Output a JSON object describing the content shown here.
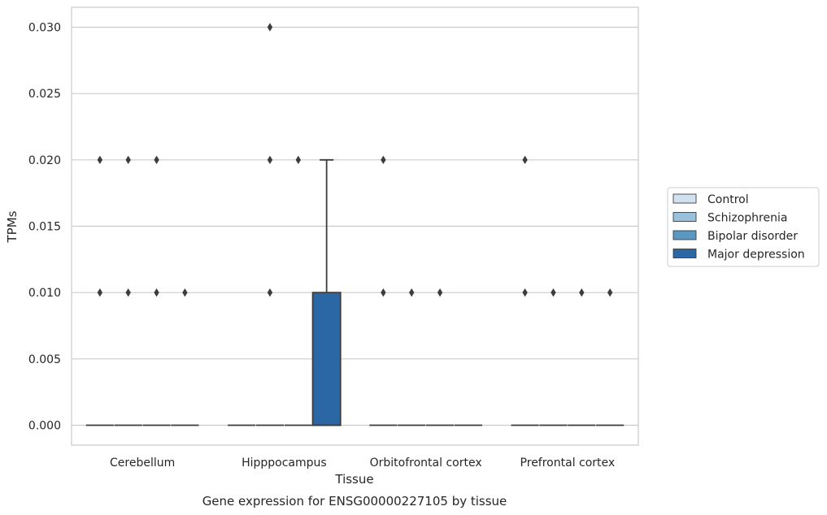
{
  "chart_data": {
    "type": "box",
    "title": "Gene expression for ENSG00000227105 by tissue",
    "xlabel": "Tissue",
    "ylabel": "TPMs",
    "categories": [
      "Cerebellum",
      "Hipppocampus",
      "Orbitofrontal cortex",
      "Prefrontal cortex"
    ],
    "ylim": [
      -0.0015,
      0.0315
    ],
    "yticks": [
      "0.000",
      "0.005",
      "0.010",
      "0.015",
      "0.020",
      "0.025",
      "0.030"
    ],
    "grid": "horizontal",
    "legend_position": "right",
    "colors": {
      "Control": "#d2e1f0",
      "Schizophrenia": "#9ac1db",
      "Bipolar disorder": "#5a98c4",
      "Major depression": "#2b67a5"
    },
    "series": [
      {
        "name": "Control",
        "boxes": [
          {
            "q1": 0,
            "median": 0,
            "q3": 0,
            "whisker_low": 0,
            "whisker_high": 0,
            "outliers": [
              0.01,
              0.02
            ]
          },
          {
            "q1": 0,
            "median": 0,
            "q3": 0,
            "whisker_low": 0,
            "whisker_high": 0,
            "outliers": []
          },
          {
            "q1": 0,
            "median": 0,
            "q3": 0,
            "whisker_low": 0,
            "whisker_high": 0,
            "outliers": [
              0.01,
              0.02
            ]
          },
          {
            "q1": 0,
            "median": 0,
            "q3": 0,
            "whisker_low": 0,
            "whisker_high": 0,
            "outliers": [
              0.01,
              0.02
            ]
          }
        ]
      },
      {
        "name": "Schizophrenia",
        "boxes": [
          {
            "q1": 0,
            "median": 0,
            "q3": 0,
            "whisker_low": 0,
            "whisker_high": 0,
            "outliers": [
              0.01,
              0.02
            ]
          },
          {
            "q1": 0,
            "median": 0,
            "q3": 0,
            "whisker_low": 0,
            "whisker_high": 0,
            "outliers": [
              0.01,
              0.02,
              0.03
            ]
          },
          {
            "q1": 0,
            "median": 0,
            "q3": 0,
            "whisker_low": 0,
            "whisker_high": 0,
            "outliers": [
              0.01
            ]
          },
          {
            "q1": 0,
            "median": 0,
            "q3": 0,
            "whisker_low": 0,
            "whisker_high": 0,
            "outliers": [
              0.01
            ]
          }
        ]
      },
      {
        "name": "Bipolar disorder",
        "boxes": [
          {
            "q1": 0,
            "median": 0,
            "q3": 0,
            "whisker_low": 0,
            "whisker_high": 0,
            "outliers": [
              0.01,
              0.02
            ]
          },
          {
            "q1": 0,
            "median": 0,
            "q3": 0,
            "whisker_low": 0,
            "whisker_high": 0,
            "outliers": [
              0.02
            ]
          },
          {
            "q1": 0,
            "median": 0,
            "q3": 0,
            "whisker_low": 0,
            "whisker_high": 0,
            "outliers": [
              0.01
            ]
          },
          {
            "q1": 0,
            "median": 0,
            "q3": 0,
            "whisker_low": 0,
            "whisker_high": 0,
            "outliers": [
              0.01
            ]
          }
        ]
      },
      {
        "name": "Major depression",
        "boxes": [
          {
            "q1": 0,
            "median": 0,
            "q3": 0,
            "whisker_low": 0,
            "whisker_high": 0,
            "outliers": [
              0.01
            ]
          },
          {
            "q1": 0,
            "median": 0,
            "q3": 0.01,
            "whisker_low": 0,
            "whisker_high": 0.02,
            "outliers": []
          },
          {
            "q1": 0,
            "median": 0,
            "q3": 0,
            "whisker_low": 0,
            "whisker_high": 0,
            "outliers": []
          },
          {
            "q1": 0,
            "median": 0,
            "q3": 0,
            "whisker_low": 0,
            "whisker_high": 0,
            "outliers": [
              0.01
            ]
          }
        ]
      }
    ]
  }
}
